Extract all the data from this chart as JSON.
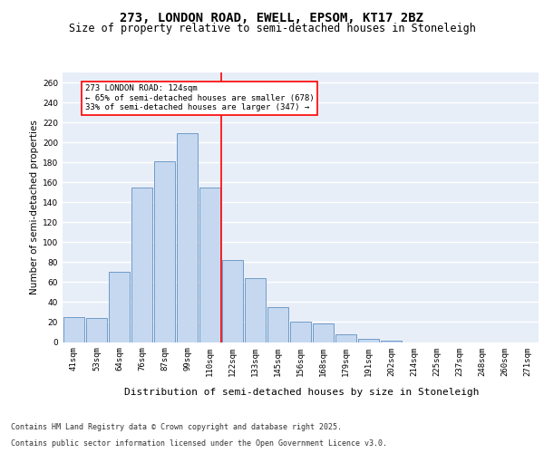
{
  "title": "273, LONDON ROAD, EWELL, EPSOM, KT17 2BZ",
  "subtitle": "Size of property relative to semi-detached houses in Stoneleigh",
  "xlabel": "Distribution of semi-detached houses by size in Stoneleigh",
  "ylabel": "Number of semi-detached properties",
  "bar_color": "#c5d8f0",
  "bar_edge_color": "#6090c0",
  "background_color": "#e8eef8",
  "grid_color": "#ffffff",
  "categories": [
    "41sqm",
    "53sqm",
    "64sqm",
    "76sqm",
    "87sqm",
    "99sqm",
    "110sqm",
    "122sqm",
    "133sqm",
    "145sqm",
    "156sqm",
    "168sqm",
    "179sqm",
    "191sqm",
    "202sqm",
    "214sqm",
    "225sqm",
    "237sqm",
    "248sqm",
    "260sqm",
    "271sqm"
  ],
  "values": [
    25,
    24,
    70,
    155,
    181,
    209,
    155,
    82,
    64,
    35,
    20,
    19,
    8,
    3,
    1,
    0,
    0,
    0,
    0,
    0,
    0
  ],
  "ylim": [
    0,
    270
  ],
  "yticks": [
    0,
    20,
    40,
    60,
    80,
    100,
    120,
    140,
    160,
    180,
    200,
    220,
    240,
    260
  ],
  "property_line_x": 6.5,
  "annotation_text_line1": "273 LONDON ROAD: 124sqm",
  "annotation_text_line2": "← 65% of semi-detached houses are smaller (678)",
  "annotation_text_line3": "33% of semi-detached houses are larger (347) →",
  "footer_line1": "Contains HM Land Registry data © Crown copyright and database right 2025.",
  "footer_line2": "Contains public sector information licensed under the Open Government Licence v3.0.",
  "title_fontsize": 10,
  "subtitle_fontsize": 8.5,
  "ylabel_fontsize": 7.5,
  "xlabel_fontsize": 8,
  "tick_fontsize": 6.5,
  "annot_fontsize": 6.5,
  "footer_fontsize": 6
}
